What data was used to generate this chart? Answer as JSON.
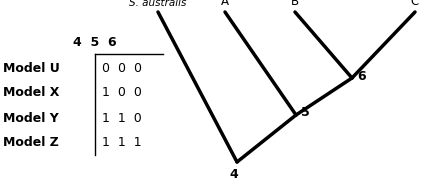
{
  "leaf_saus": "S. australis",
  "leaf_A": "A",
  "leaf_B": "B",
  "leaf_C": "C",
  "node_labels": [
    "4",
    "5",
    "6"
  ],
  "table_rows": [
    {
      "model": "Model U",
      "values": "0  0  0"
    },
    {
      "model": "Model X",
      "values": "1  0  0"
    },
    {
      "model": "Model Y",
      "values": "1  1  0"
    },
    {
      "model": "Model Z",
      "values": "1  1  1"
    }
  ],
  "lw": 2.5,
  "bg_color": "#ffffff",
  "fig_width": 4.27,
  "fig_height": 1.82,
  "dpi": 100
}
